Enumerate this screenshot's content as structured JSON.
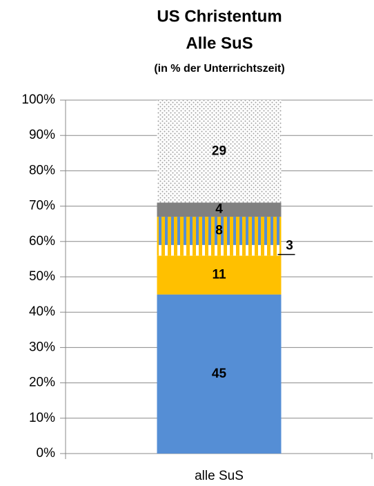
{
  "chart_data": {
    "type": "stacked_bar",
    "title": [
      "US Christentum",
      "Alle SuS"
    ],
    "subtitle": "(in % der Unterrichtszeit)",
    "categories": [
      "alle SuS"
    ],
    "series": [
      {
        "color": "#558ed5",
        "values": [
          45
        ]
      },
      {
        "color": "#ffc000",
        "values": [
          11
        ]
      },
      {
        "color": "#ffffff",
        "pattern": "stripes",
        "pattern_color": "#ffc000",
        "values": [
          3
        ]
      },
      {
        "color": "#558ed5",
        "pattern": "stripes",
        "pattern_color": "#ffc000",
        "values": [
          8
        ]
      },
      {
        "color": "#808080",
        "values": [
          4
        ]
      },
      {
        "color": "#ffffff",
        "pattern": "dots",
        "pattern_color": "#a0a0a0",
        "values": [
          29
        ]
      }
    ],
    "ylim": [
      0,
      100
    ],
    "yticks": [
      {
        "value": 0,
        "label": "0%"
      },
      {
        "value": 10,
        "label": "10%"
      },
      {
        "value": 20,
        "label": "20%"
      },
      {
        "value": 30,
        "label": "30%"
      },
      {
        "value": 40,
        "label": "40%"
      },
      {
        "value": 50,
        "label": "50%"
      },
      {
        "value": 60,
        "label": "60%"
      },
      {
        "value": 70,
        "label": "70%"
      },
      {
        "value": 80,
        "label": "80%"
      },
      {
        "value": 90,
        "label": "90%"
      },
      {
        "value": 100,
        "label": "100%"
      }
    ],
    "grid": true
  }
}
